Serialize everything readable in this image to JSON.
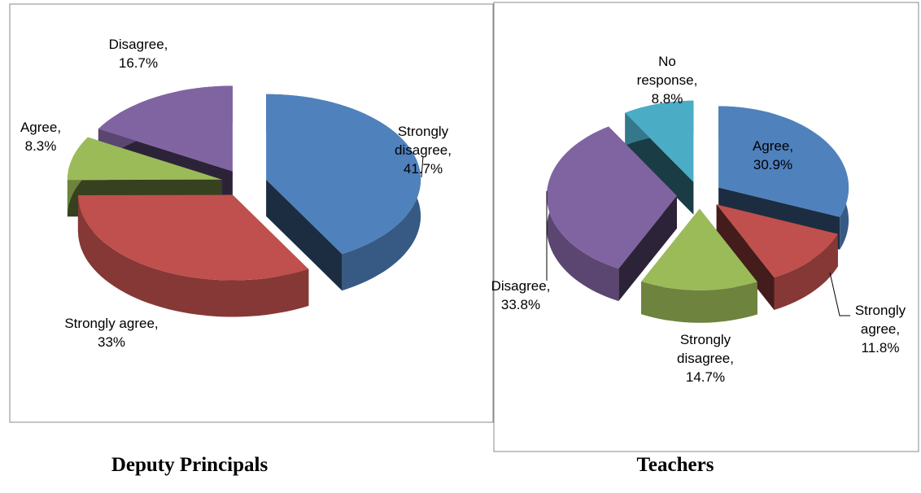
{
  "chart_data": [
    {
      "type": "pie",
      "title": "Deputy Principals",
      "label_separator": ",",
      "categories": [
        "Strongly disagree",
        "Strongly agree",
        "Agree",
        "Disagree"
      ],
      "values": [
        41.7,
        33,
        8.3,
        16.7
      ],
      "value_labels": [
        "41.7%",
        "33%",
        "8.3%",
        "16.7%"
      ],
      "colors": [
        "#4f81bd",
        "#c0504d",
        "#9bbb59",
        "#8064a2"
      ]
    },
    {
      "type": "pie",
      "title": "Teachers",
      "label_separator": ",",
      "categories": [
        "Agree",
        "Strongly agree",
        "Strongly disagree",
        "Disagree",
        "No response"
      ],
      "values": [
        30.9,
        11.8,
        14.7,
        33.8,
        8.8
      ],
      "value_labels": [
        "30.9%",
        "11.8%",
        "14.7%",
        "33.8%",
        "8.8%"
      ],
      "colors": [
        "#4f81bd",
        "#c0504d",
        "#9bbb59",
        "#8064a2",
        "#4bacc6"
      ]
    }
  ]
}
